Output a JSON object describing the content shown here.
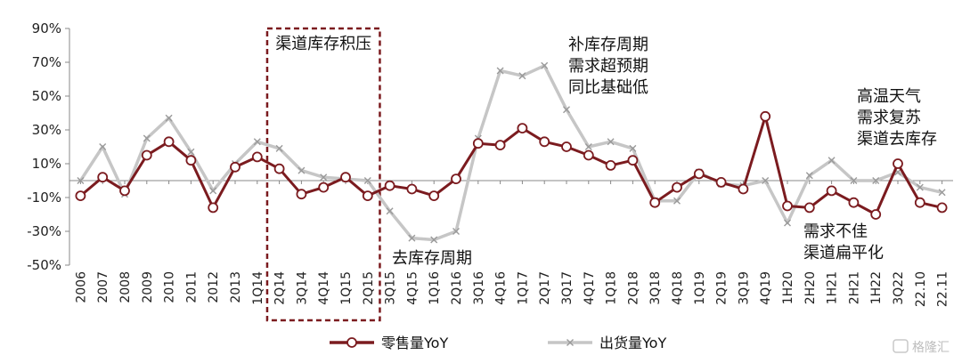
{
  "chart_data": {
    "type": "line",
    "title": "",
    "xlabel": "",
    "ylabel": "",
    "ylim": [
      -50,
      90
    ],
    "yticks": [
      90,
      70,
      50,
      30,
      10,
      -10,
      -30,
      -50
    ],
    "ytick_labels": [
      "90%",
      "70%",
      "50%",
      "30%",
      "10%",
      "-10%",
      "-30%",
      "-50%"
    ],
    "categories": [
      "2006",
      "2007",
      "2008",
      "2009",
      "2010",
      "2011",
      "2012",
      "2013",
      "1Q14",
      "2Q14",
      "3Q14",
      "4Q14",
      "1Q15",
      "2Q15",
      "3Q15",
      "4Q15",
      "1Q16",
      "2Q16",
      "3Q16",
      "4Q16",
      "1Q17",
      "2Q17",
      "3Q17",
      "4Q17",
      "1Q18",
      "2Q18",
      "3Q18",
      "4Q18",
      "1Q19",
      "2Q19",
      "3Q19",
      "4Q19",
      "1H20",
      "2H20",
      "1H21",
      "2H21",
      "1H22",
      "3Q22",
      "22.10",
      "22.11"
    ],
    "series": [
      {
        "name": "零售量YoY",
        "color": "#7b1b1f",
        "marker": "circle",
        "values": [
          -9,
          2,
          -6,
          15,
          23,
          12,
          -16,
          8,
          14,
          7,
          -8,
          -4,
          2,
          -9,
          -3,
          -5,
          -9,
          1,
          22,
          21,
          31,
          23,
          20,
          15,
          9,
          12,
          -13,
          -4,
          4,
          -1,
          -5,
          38,
          -15,
          -16,
          -6,
          -13,
          -20,
          10,
          -13,
          -16
        ]
      },
      {
        "name": "出货量YoY",
        "color": "#c6c6c6",
        "marker": "x",
        "values": [
          0,
          20,
          -8,
          25,
          37,
          17,
          -6,
          10,
          23,
          19,
          6,
          2,
          1,
          0,
          -18,
          -34,
          -35,
          -30,
          25,
          65,
          62,
          68,
          42,
          20,
          23,
          19,
          -12,
          -12,
          5,
          -2,
          -3,
          0,
          -25,
          3,
          12,
          0,
          0,
          5,
          -4,
          -7
        ]
      }
    ],
    "highlight_box": {
      "from": "2Q14",
      "to": "2Q15",
      "label": "渠道库存积压"
    },
    "annotations": [
      {
        "lines": [
          "补库存周期",
          "需求超预期",
          "同比基础低"
        ]
      },
      {
        "lines": [
          "去库存周期"
        ]
      },
      {
        "lines": [
          "高温天气",
          "需求复苏",
          "渠道去库存"
        ]
      },
      {
        "lines": [
          "需求不佳",
          "渠道扁平化"
        ]
      }
    ],
    "legend": "bottom",
    "grid": false
  },
  "watermark": "格隆汇"
}
